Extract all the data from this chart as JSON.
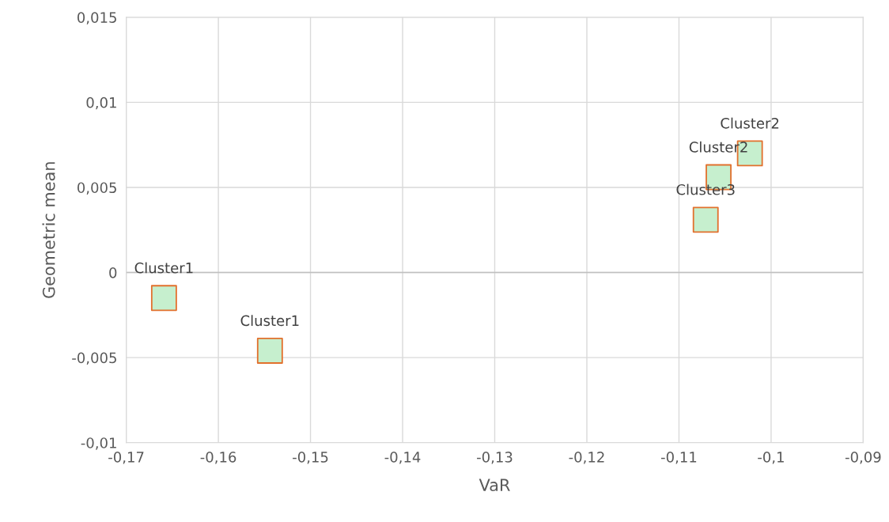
{
  "chart_data": {
    "type": "scatter",
    "xlabel": "VaR",
    "ylabel": "Geometric mean",
    "x": [
      -0.1659,
      -0.1544,
      -0.1071,
      -0.1057,
      -0.1023
    ],
    "series": [
      {
        "color": "#c6efce",
        "values": [
          -0.0015,
          -0.0046,
          0.0031,
          0.0056,
          0.007
        ]
      }
    ],
    "marker": "square",
    "grid": true,
    "xlim": [
      -0.17,
      -0.09
    ],
    "xticks": [
      {
        "value": -0.17,
        "label": "-0,17"
      },
      {
        "value": -0.16,
        "label": "-0,16"
      },
      {
        "value": -0.15,
        "label": "-0,15"
      },
      {
        "value": -0.14,
        "label": "-0,14"
      },
      {
        "value": -0.13,
        "label": "-0,13"
      },
      {
        "value": -0.12,
        "label": "-0,12"
      },
      {
        "value": -0.11,
        "label": "-0,11"
      },
      {
        "value": -0.1,
        "label": "-0,1"
      },
      {
        "value": -0.09,
        "label": "-0,09"
      }
    ],
    "ylim": [
      -0.01,
      0.015
    ],
    "yticks": [
      {
        "value": -0.01,
        "label": "-0,01"
      },
      {
        "value": -0.005,
        "label": "-0,005"
      },
      {
        "value": 0,
        "label": "0"
      },
      {
        "value": 0.005,
        "label": "0,005"
      },
      {
        "value": 0.01,
        "label": "0,01"
      },
      {
        "value": 0.015,
        "label": "0,015"
      }
    ],
    "annotations": [
      {
        "text": "Cluster1",
        "x": -0.1659,
        "y": -0.0015
      },
      {
        "text": "Cluster1",
        "x": -0.1544,
        "y": -0.0046
      },
      {
        "text": "Cluster3",
        "x": -0.1071,
        "y": 0.0031
      },
      {
        "text": "Cluster2",
        "x": -0.1057,
        "y": 0.0056
      },
      {
        "text": "Cluster2",
        "x": -0.1023,
        "y": 0.007
      }
    ]
  }
}
